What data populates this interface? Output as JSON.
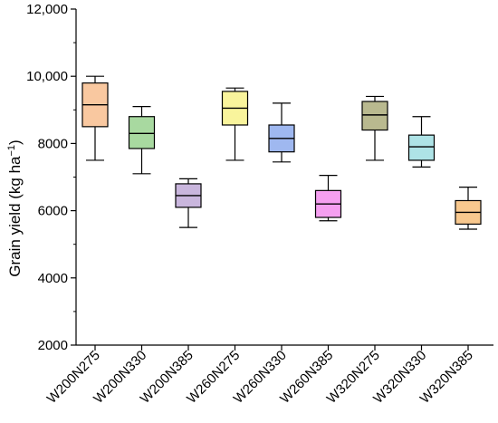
{
  "chart_data": {
    "type": "box",
    "title": "",
    "xlabel": "",
    "ylabel": "Grain yield (kg ha",
    "ylabel_unit_sup": "−1",
    "ylabel_close": ")",
    "ylim": [
      2000,
      12000
    ],
    "yticks": [
      2000,
      4000,
      6000,
      8000,
      10000,
      12000
    ],
    "ytick_labels": [
      "2000",
      "4000",
      "6000",
      "8000",
      "10,000",
      "12,000"
    ],
    "grid": false,
    "legend": "none",
    "categories": [
      "W200N275",
      "W200N330",
      "W200N385",
      "W260N275",
      "W260N330",
      "W260N385",
      "W320N275",
      "W320N330",
      "W320N385"
    ],
    "boxes": [
      {
        "category": "W200N275",
        "min": 7500,
        "q1": 8500,
        "median": 9150,
        "q3": 9800,
        "max": 10000,
        "color": "#f9c8a0"
      },
      {
        "category": "W200N330",
        "min": 7100,
        "q1": 7850,
        "median": 8300,
        "q3": 8800,
        "max": 9100,
        "color": "#a8d9a0"
      },
      {
        "category": "W200N385",
        "min": 5500,
        "q1": 6100,
        "median": 6450,
        "q3": 6800,
        "max": 6950,
        "color": "#c9b6dd"
      },
      {
        "category": "W260N275",
        "min": 7500,
        "q1": 8550,
        "median": 9050,
        "q3": 9550,
        "max": 9650,
        "color": "#f9f49c"
      },
      {
        "category": "W260N330",
        "min": 7450,
        "q1": 7750,
        "median": 8150,
        "q3": 8550,
        "max": 9200,
        "color": "#9fb8f0"
      },
      {
        "category": "W260N385",
        "min": 5700,
        "q1": 5800,
        "median": 6200,
        "q3": 6600,
        "max": 7050,
        "color": "#f59ff0"
      },
      {
        "category": "W320N275",
        "min": 7500,
        "q1": 8400,
        "median": 8850,
        "q3": 9250,
        "max": 9400,
        "color": "#b9b98f"
      },
      {
        "category": "W320N330",
        "min": 7300,
        "q1": 7500,
        "median": 7900,
        "q3": 8250,
        "max": 8800,
        "color": "#aee3e6"
      },
      {
        "category": "W320N385",
        "min": 5450,
        "q1": 5600,
        "median": 5950,
        "q3": 6300,
        "max": 6700,
        "color": "#f8c88e"
      }
    ]
  }
}
